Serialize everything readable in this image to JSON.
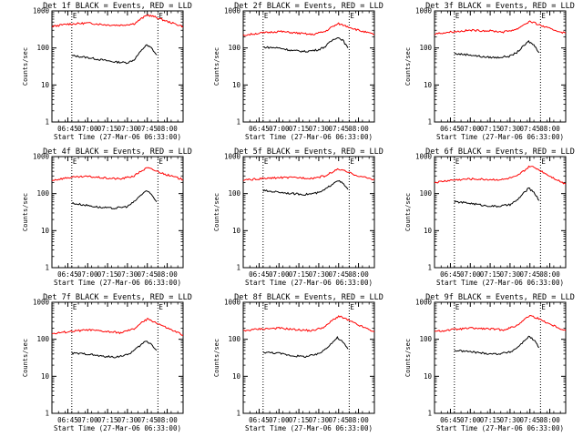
{
  "figure": {
    "ylabel": "Counts/sec"
  },
  "chart_data": [
    {
      "type": "line",
      "title": "Det 1f BLACK = Events, RED = LLD",
      "xlabel": "Start Time (27-Mar-06 06:33:00)",
      "ylabel": "Counts/sec",
      "yscale": "log",
      "ylim": [
        1,
        1000
      ],
      "xlim": [
        "06:33",
        "08:12"
      ],
      "x_ticks": [
        "06:45",
        "07:00",
        "07:15",
        "07:30",
        "07:45",
        "08:00"
      ],
      "y_ticks": [
        "1",
        "10",
        "100",
        "1000"
      ],
      "markers": [
        {
          "time": "06:48",
          "label": "E"
        },
        {
          "time": "07:53",
          "label": "E"
        }
      ],
      "series": [
        {
          "name": "Events",
          "color": "#000000",
          "x": [
            "06:48",
            "07:00",
            "07:10",
            "07:20",
            "07:30",
            "07:35",
            "07:40",
            "07:44",
            "07:48",
            "07:52"
          ],
          "y": [
            62,
            55,
            48,
            42,
            40,
            48,
            80,
            120,
            100,
            65
          ]
        },
        {
          "name": "LLD",
          "color": "#ff0000",
          "x": [
            "06:33",
            "06:45",
            "07:00",
            "07:15",
            "07:25",
            "07:35",
            "07:40",
            "07:45",
            "07:50",
            "08:00",
            "08:12"
          ],
          "y": [
            380,
            440,
            470,
            420,
            410,
            450,
            600,
            780,
            700,
            520,
            380
          ]
        }
      ]
    },
    {
      "type": "line",
      "title": "Det 2f BLACK = Events, RED = LLD",
      "xlabel": "Start Time (27-Mar-06 06:33:00)",
      "ylabel": "Counts/sec",
      "yscale": "log",
      "ylim": [
        1,
        1000
      ],
      "xlim": [
        "06:33",
        "08:12"
      ],
      "x_ticks": [
        "06:45",
        "07:00",
        "07:15",
        "07:30",
        "07:45",
        "08:00"
      ],
      "y_ticks": [
        "1",
        "10",
        "100",
        "1000"
      ],
      "markers": [
        {
          "time": "06:48",
          "label": "E"
        },
        {
          "time": "07:53",
          "label": "E"
        }
      ],
      "series": [
        {
          "name": "Events",
          "color": "#000000",
          "x": [
            "06:48",
            "07:00",
            "07:10",
            "07:20",
            "07:30",
            "07:35",
            "07:40",
            "07:44",
            "07:48",
            "07:52"
          ],
          "y": [
            105,
            100,
            85,
            80,
            90,
            110,
            160,
            195,
            165,
            100
          ]
        },
        {
          "name": "LLD",
          "color": "#ff0000",
          "x": [
            "06:33",
            "06:45",
            "07:00",
            "07:15",
            "07:25",
            "07:35",
            "07:40",
            "07:45",
            "07:50",
            "08:00",
            "08:12"
          ],
          "y": [
            220,
            250,
            280,
            250,
            230,
            280,
            370,
            450,
            400,
            300,
            230
          ]
        }
      ]
    },
    {
      "type": "line",
      "title": "Det 3f BLACK = Events, RED = LLD",
      "xlabel": "Start Time (27-Mar-06 06:33:00)",
      "ylabel": "Counts/sec",
      "yscale": "log",
      "ylim": [
        1,
        1000
      ],
      "xlim": [
        "06:33",
        "08:12"
      ],
      "x_ticks": [
        "06:45",
        "07:00",
        "07:15",
        "07:30",
        "07:45",
        "08:00"
      ],
      "y_ticks": [
        "1",
        "10",
        "100",
        "1000"
      ],
      "markers": [
        {
          "time": "06:48",
          "label": "E"
        },
        {
          "time": "07:53",
          "label": "E"
        }
      ],
      "series": [
        {
          "name": "Events",
          "color": "#000000",
          "x": [
            "06:48",
            "07:00",
            "07:10",
            "07:20",
            "07:30",
            "07:35",
            "07:40",
            "07:44",
            "07:48",
            "07:52"
          ],
          "y": [
            70,
            65,
            57,
            55,
            60,
            75,
            110,
            150,
            120,
            75
          ]
        },
        {
          "name": "LLD",
          "color": "#ff0000",
          "x": [
            "06:33",
            "06:45",
            "07:00",
            "07:15",
            "07:25",
            "07:35",
            "07:40",
            "07:45",
            "07:50",
            "08:00",
            "08:12"
          ],
          "y": [
            240,
            270,
            300,
            290,
            270,
            320,
            420,
            520,
            450,
            330,
            250
          ]
        }
      ]
    },
    {
      "type": "line",
      "title": "Det 4f BLACK = Events, RED = LLD",
      "xlabel": "Start Time (27-Mar-06 06:33:00)",
      "ylabel": "Counts/sec",
      "yscale": "log",
      "ylim": [
        1,
        1000
      ],
      "xlim": [
        "06:33",
        "08:12"
      ],
      "x_ticks": [
        "06:45",
        "07:00",
        "07:15",
        "07:30",
        "07:45",
        "08:00"
      ],
      "y_ticks": [
        "1",
        "10",
        "100",
        "1000"
      ],
      "markers": [
        {
          "time": "06:48",
          "label": "E"
        },
        {
          "time": "07:53",
          "label": "E"
        }
      ],
      "series": [
        {
          "name": "Events",
          "color": "#000000",
          "x": [
            "06:48",
            "07:00",
            "07:10",
            "07:20",
            "07:30",
            "07:35",
            "07:40",
            "07:44",
            "07:48",
            "07:52"
          ],
          "y": [
            55,
            48,
            42,
            40,
            45,
            60,
            90,
            120,
            95,
            60
          ]
        },
        {
          "name": "LLD",
          "color": "#ff0000",
          "x": [
            "06:33",
            "06:45",
            "07:00",
            "07:15",
            "07:25",
            "07:35",
            "07:40",
            "07:45",
            "07:50",
            "08:00",
            "08:12"
          ],
          "y": [
            230,
            270,
            290,
            260,
            250,
            300,
            400,
            500,
            430,
            320,
            240
          ]
        }
      ]
    },
    {
      "type": "line",
      "title": "Det 5f BLACK = Events, RED = LLD",
      "xlabel": "Start Time (27-Mar-06 06:33:00)",
      "ylabel": "Counts/sec",
      "yscale": "log",
      "ylim": [
        1,
        1000
      ],
      "xlim": [
        "06:33",
        "08:12"
      ],
      "x_ticks": [
        "06:45",
        "07:00",
        "07:15",
        "07:30",
        "07:45",
        "08:00"
      ],
      "y_ticks": [
        "1",
        "10",
        "100",
        "1000"
      ],
      "markers": [
        {
          "time": "06:48",
          "label": "E"
        },
        {
          "time": "07:53",
          "label": "E"
        }
      ],
      "series": [
        {
          "name": "Events",
          "color": "#000000",
          "x": [
            "06:48",
            "07:00",
            "07:10",
            "07:20",
            "07:30",
            "07:35",
            "07:40",
            "07:44",
            "07:48",
            "07:52"
          ],
          "y": [
            120,
            110,
            100,
            95,
            105,
            130,
            180,
            230,
            190,
            130
          ]
        },
        {
          "name": "LLD",
          "color": "#ff0000",
          "x": [
            "06:33",
            "06:45",
            "07:00",
            "07:15",
            "07:25",
            "07:35",
            "07:40",
            "07:45",
            "07:50",
            "08:00",
            "08:12"
          ],
          "y": [
            230,
            250,
            270,
            270,
            260,
            300,
            380,
            460,
            400,
            300,
            240
          ]
        }
      ]
    },
    {
      "type": "line",
      "title": "Det 6f BLACK = Events, RED = LLD",
      "xlabel": "Start Time (27-Mar-06 06:33:00)",
      "ylabel": "Counts/sec",
      "yscale": "log",
      "ylim": [
        1,
        1000
      ],
      "xlim": [
        "06:33",
        "08:12"
      ],
      "x_ticks": [
        "06:45",
        "07:00",
        "07:15",
        "07:30",
        "07:45",
        "08:00"
      ],
      "y_ticks": [
        "1",
        "10",
        "100",
        "1000"
      ],
      "markers": [
        {
          "time": "06:48",
          "label": "E"
        },
        {
          "time": "07:53",
          "label": "E"
        }
      ],
      "series": [
        {
          "name": "Events",
          "color": "#000000",
          "x": [
            "06:48",
            "07:00",
            "07:10",
            "07:20",
            "07:30",
            "07:35",
            "07:40",
            "07:44",
            "07:48",
            "07:52"
          ],
          "y": [
            60,
            55,
            48,
            45,
            50,
            65,
            100,
            140,
            110,
            65
          ]
        },
        {
          "name": "LLD",
          "color": "#ff0000",
          "x": [
            "06:33",
            "06:45",
            "07:00",
            "07:15",
            "07:25",
            "07:35",
            "07:40",
            "07:45",
            "07:50",
            "08:00",
            "08:12"
          ],
          "y": [
            200,
            230,
            250,
            240,
            240,
            290,
            400,
            550,
            480,
            300,
            180
          ]
        }
      ]
    },
    {
      "type": "line",
      "title": "Det 7f BLACK = Events, RED = LLD",
      "xlabel": "Start Time (27-Mar-06 06:33:00)",
      "ylabel": "Counts/sec",
      "yscale": "log",
      "ylim": [
        1,
        1000
      ],
      "xlim": [
        "06:33",
        "08:12"
      ],
      "x_ticks": [
        "06:45",
        "07:00",
        "07:15",
        "07:30",
        "07:45",
        "08:00"
      ],
      "y_ticks": [
        "1",
        "10",
        "100",
        "1000"
      ],
      "markers": [
        {
          "time": "06:48",
          "label": "E"
        },
        {
          "time": "07:53",
          "label": "E"
        }
      ],
      "series": [
        {
          "name": "Events",
          "color": "#000000",
          "x": [
            "06:48",
            "07:00",
            "07:10",
            "07:20",
            "07:30",
            "07:35",
            "07:40",
            "07:44",
            "07:48",
            "07:52"
          ],
          "y": [
            42,
            40,
            35,
            33,
            38,
            50,
            70,
            90,
            75,
            50
          ]
        },
        {
          "name": "LLD",
          "color": "#ff0000",
          "x": [
            "06:33",
            "06:45",
            "07:00",
            "07:15",
            "07:25",
            "07:35",
            "07:40",
            "07:45",
            "07:50",
            "08:00",
            "08:12"
          ],
          "y": [
            140,
            160,
            180,
            160,
            150,
            190,
            270,
            350,
            300,
            200,
            130
          ]
        }
      ]
    },
    {
      "type": "line",
      "title": "Det 8f BLACK = Events, RED = LLD",
      "xlabel": "Start Time (27-Mar-06 06:33:00)",
      "ylabel": "Counts/sec",
      "yscale": "log",
      "ylim": [
        1,
        1000
      ],
      "xlim": [
        "06:33",
        "08:12"
      ],
      "x_ticks": [
        "06:45",
        "07:00",
        "07:15",
        "07:30",
        "07:45",
        "08:00"
      ],
      "y_ticks": [
        "1",
        "10",
        "100",
        "1000"
      ],
      "markers": [
        {
          "time": "06:48",
          "label": "E"
        },
        {
          "time": "07:53",
          "label": "E"
        }
      ],
      "series": [
        {
          "name": "Events",
          "color": "#000000",
          "x": [
            "06:48",
            "07:00",
            "07:10",
            "07:20",
            "07:30",
            "07:35",
            "07:40",
            "07:44",
            "07:48",
            "07:52"
          ],
          "y": [
            45,
            42,
            36,
            34,
            40,
            55,
            80,
            110,
            85,
            55
          ]
        },
        {
          "name": "LLD",
          "color": "#ff0000",
          "x": [
            "06:33",
            "06:45",
            "07:00",
            "07:15",
            "07:25",
            "07:35",
            "07:40",
            "07:45",
            "07:50",
            "08:00",
            "08:12"
          ],
          "y": [
            170,
            190,
            200,
            180,
            170,
            220,
            320,
            420,
            360,
            240,
            160
          ]
        }
      ]
    },
    {
      "type": "line",
      "title": "Det 9f BLACK = Events, RED = LLD",
      "xlabel": "Start Time (27-Mar-06 06:33:00)",
      "ylabel": "Counts/sec",
      "yscale": "log",
      "ylim": [
        1,
        1000
      ],
      "xlim": [
        "06:33",
        "08:12"
      ],
      "x_ticks": [
        "06:45",
        "07:00",
        "07:15",
        "07:30",
        "07:45",
        "08:00"
      ],
      "y_ticks": [
        "1",
        "10",
        "100",
        "1000"
      ],
      "markers": [
        {
          "time": "06:48",
          "label": "E"
        },
        {
          "time": "07:53",
          "label": "E"
        }
      ],
      "series": [
        {
          "name": "Events",
          "color": "#000000",
          "x": [
            "06:48",
            "07:00",
            "07:10",
            "07:20",
            "07:30",
            "07:35",
            "07:40",
            "07:44",
            "07:48",
            "07:52"
          ],
          "y": [
            50,
            46,
            42,
            40,
            45,
            58,
            85,
            120,
            95,
            60
          ]
        },
        {
          "name": "LLD",
          "color": "#ff0000",
          "x": [
            "06:33",
            "06:45",
            "07:00",
            "07:15",
            "07:25",
            "07:35",
            "07:40",
            "07:45",
            "07:50",
            "08:00",
            "08:12"
          ],
          "y": [
            160,
            180,
            200,
            190,
            180,
            230,
            330,
            440,
            380,
            260,
            170
          ]
        }
      ]
    }
  ]
}
